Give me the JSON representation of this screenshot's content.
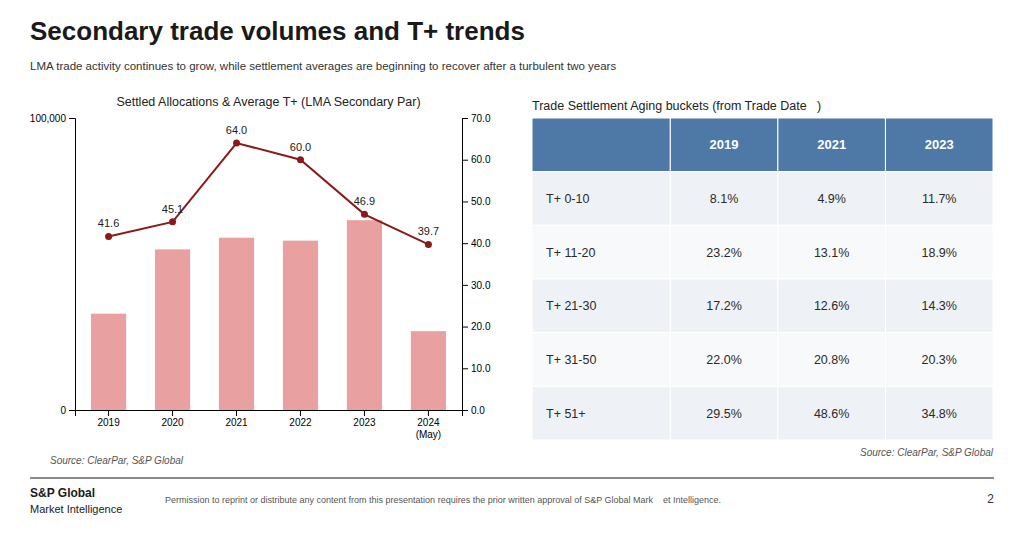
{
  "title": "Secondary trade volumes and T+ trends",
  "subtitle": "LMA trade activity continues to grow, while settlement averages are beginning to recover after a turbulent two years",
  "footer": {
    "brand": "S&P Global",
    "brand_subtitle": "Market Intelligence",
    "text": "Permission to reprint or distribute any content from this presentation requires the prior written approval of S&P Global Mark    et Intelligence.",
    "page": "2"
  },
  "chart_data": [
    {
      "type": "bar",
      "title": "Settled Allocations & Average T+ (LMA Secondary Par)",
      "annotations": [
        "Source: ClearPar, S&P Global"
      ],
      "categories": [
        "2019",
        "2020",
        "2021",
        "2022",
        "2023",
        "2024\n(May)"
      ],
      "series": [
        {
          "type": "bar",
          "color": "#e8a0a0",
          "values": [
            33000,
            55000,
            59000,
            58000,
            65000,
            27000
          ]
        },
        {
          "type": "line",
          "axis": "y2",
          "color": "#8b1a1a",
          "marker": "circle",
          "line_style": "solid",
          "data_labels": true,
          "values": [
            41.6,
            45.1,
            64.0,
            60.0,
            46.9,
            39.7
          ],
          "value_labels": [
            "41.6",
            "45.1",
            "64.0",
            "60.0",
            "46.9",
            "39.7"
          ]
        }
      ],
      "ylim": [
        0,
        100000
      ],
      "yticks": [
        0,
        {
          "value": 100000,
          "label": "100,000"
        }
      ],
      "y2lim": [
        0,
        70
      ],
      "y2ticks": [
        {
          "value": 0,
          "label": "0.0"
        },
        {
          "value": 10,
          "label": "10.0"
        },
        {
          "value": 20,
          "label": "20.0"
        },
        {
          "value": 30,
          "label": "30.0"
        },
        {
          "value": 40,
          "label": "40.0"
        },
        {
          "value": 50,
          "label": "50.0"
        },
        {
          "value": 60,
          "label": "60.0"
        },
        {
          "value": 70,
          "label": "70.0"
        }
      ],
      "grid": false
    },
    {
      "type": "table",
      "title": "Trade Settlement Aging buckets (from Trade Date   )",
      "annotations": [
        "Source: ClearPar, S&P Global"
      ],
      "categories": [
        "T+ 0-10",
        "T+ 11-20",
        "T+ 21-30",
        "T+ 31-50",
        "T+ 51+"
      ],
      "series": [
        {
          "name": "2019",
          "values": [
            8.1,
            23.2,
            17.2,
            22.0,
            29.5
          ],
          "value_labels": [
            "8.1%",
            "23.2%",
            "17.2%",
            "22.0%",
            "29.5%"
          ]
        },
        {
          "name": "2021",
          "values": [
            4.9,
            13.1,
            12.6,
            20.8,
            48.6
          ],
          "value_labels": [
            "4.9%",
            "13.1%",
            "12.6%",
            "20.8%",
            "48.6%"
          ]
        },
        {
          "name": "2023",
          "values": [
            11.7,
            18.9,
            14.3,
            20.3,
            34.8
          ],
          "value_labels": [
            "11.7%",
            "18.9%",
            "14.3%",
            "20.3%",
            "34.8%"
          ]
        }
      ]
    }
  ]
}
